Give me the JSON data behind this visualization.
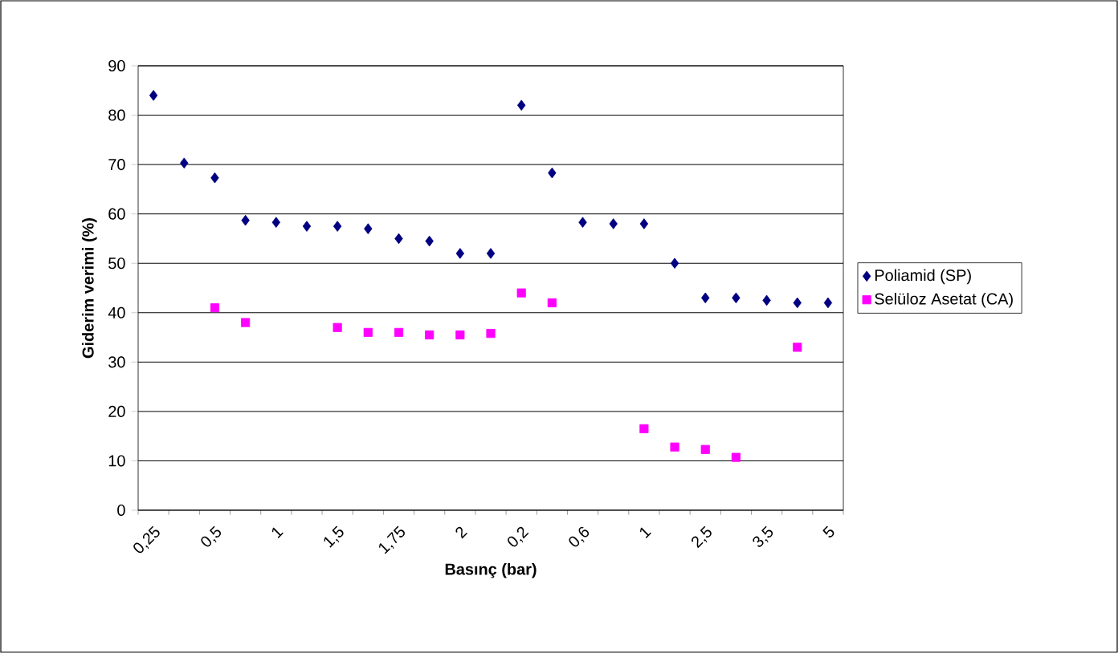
{
  "chart_data": {
    "type": "scatter",
    "xlabel": "Basınç (bar)",
    "ylabel": "Giderim verimi (%)",
    "categories": [
      "0,25",
      null,
      "0,5",
      null,
      "1",
      null,
      "1,5",
      null,
      "1,75",
      null,
      "2",
      null,
      "0,2",
      null,
      "0,6",
      null,
      "1",
      null,
      "2,5",
      null,
      "3,5",
      null,
      "5"
    ],
    "series": [
      {
        "name": "Poliamid (SP)",
        "color": "#000080",
        "marker": "diamond",
        "values": [
          84,
          70.3,
          67.3,
          58.7,
          58.3,
          57.5,
          57.5,
          57,
          55,
          54.5,
          52,
          52,
          82,
          68.3,
          58.3,
          58,
          58,
          50,
          43,
          43,
          42.5,
          42,
          42
        ]
      },
      {
        "name": "Selüloz Asetat (CA)",
        "color": "#ff00ff",
        "marker": "square",
        "values": [
          null,
          null,
          41,
          38,
          null,
          null,
          37,
          36,
          36,
          35.5,
          35.5,
          35.8,
          44,
          42,
          null,
          null,
          16.5,
          12.8,
          12.3,
          10.7,
          null,
          33,
          null
        ]
      }
    ],
    "ylim": [
      0,
      90
    ],
    "yticks": [
      0,
      10,
      20,
      30,
      40,
      50,
      60,
      70,
      80,
      90
    ],
    "grid": "y",
    "legend": "right"
  }
}
